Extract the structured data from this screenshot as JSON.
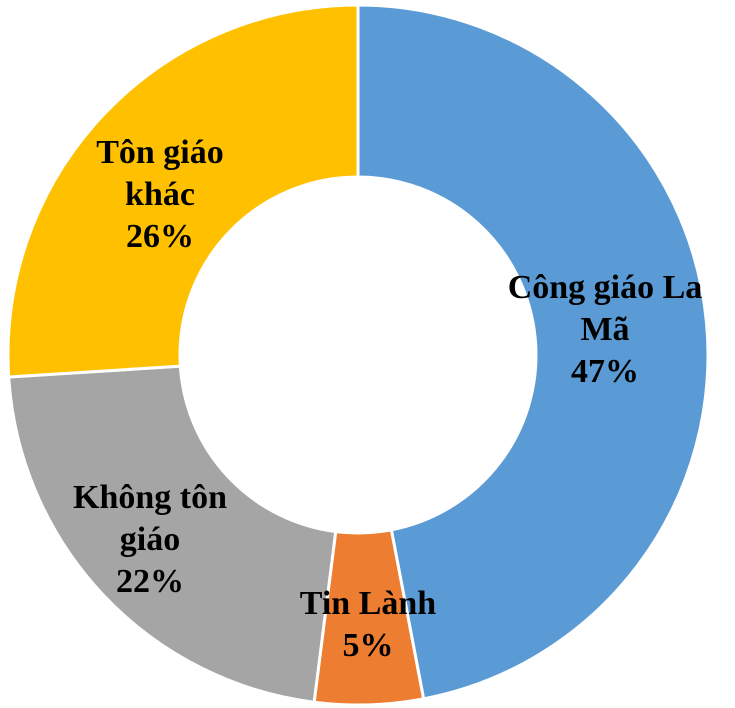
{
  "chart_data": {
    "type": "donut",
    "categories": [
      "Công giáo La Mã",
      "Tin Lành",
      "Không tôn giáo",
      "Tôn giáo khác"
    ],
    "values": [
      47,
      5,
      22,
      26
    ],
    "value_labels": [
      "47%",
      "5%",
      "22%",
      "26%"
    ],
    "colors": [
      "#5b9bd5",
      "#ed7d31",
      "#a5a5a5",
      "#ffc000"
    ]
  }
}
